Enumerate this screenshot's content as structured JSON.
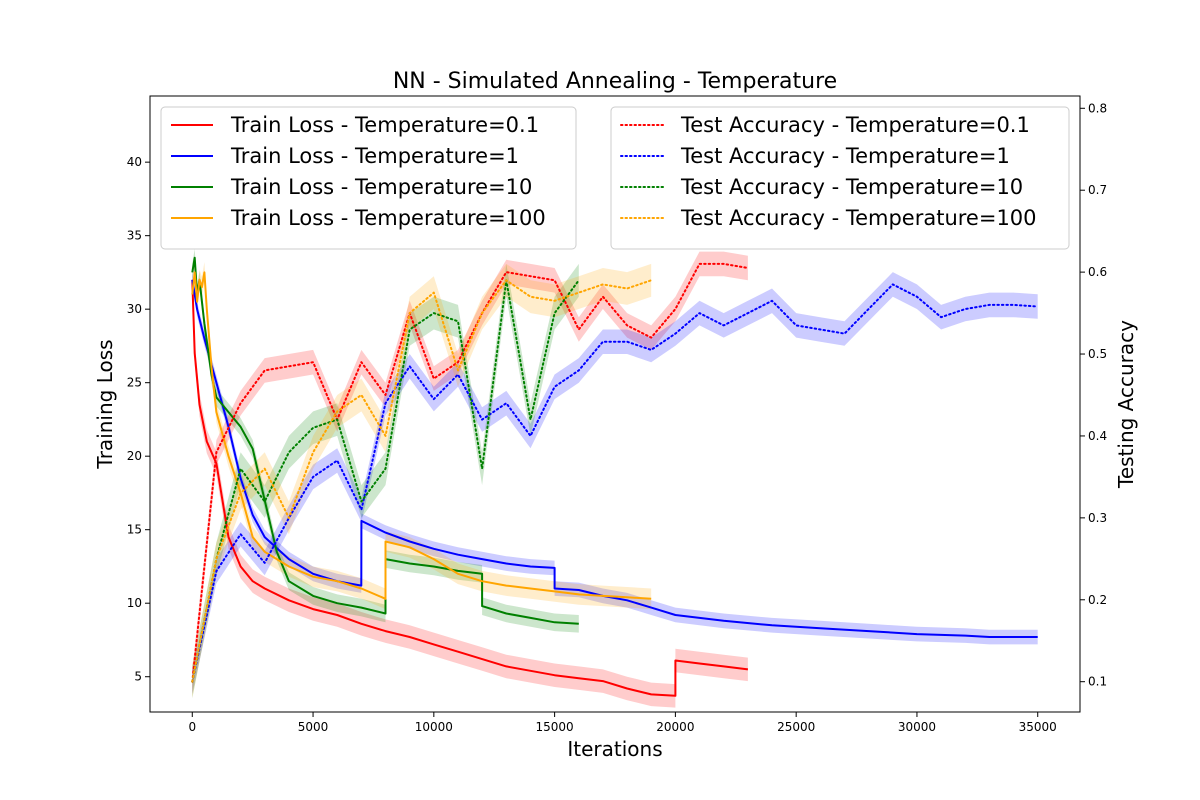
{
  "chart_data": {
    "type": "line",
    "title": "NN - Simulated Annealing - Temperature",
    "xlabel": "Iterations",
    "ylabel_left": "Training Loss",
    "ylabel_right": "Testing Accuracy",
    "xlim": [
      -1750,
      36750
    ],
    "ylim_left": [
      2.6,
      44.5
    ],
    "ylim_right": [
      0.063,
      0.815
    ],
    "xticks": [
      0,
      5000,
      10000,
      15000,
      20000,
      25000,
      30000,
      35000
    ],
    "yticks_left": [
      5,
      10,
      15,
      20,
      25,
      30,
      35,
      40
    ],
    "yticks_right": [
      0.1,
      0.2,
      0.3,
      0.4,
      0.5,
      0.6,
      0.7,
      0.8
    ],
    "grid": false,
    "legend_left_placement": "upper-left",
    "legend_right_placement": "upper-right",
    "series": [
      {
        "name": "Train Loss - Temperature=0.1",
        "axis": "left",
        "style": "solid",
        "color": "#ff0000",
        "x": [
          0,
          100,
          300,
          600,
          1000,
          1500,
          2000,
          2500,
          3000,
          4000,
          5000,
          6000,
          7000,
          8000,
          9000,
          10000,
          11000,
          12000,
          13000,
          14000,
          15000,
          16000,
          17000,
          18000,
          19000,
          20000,
          20001,
          21000,
          22000,
          23000
        ],
        "y": [
          32,
          27,
          23.5,
          21,
          19.5,
          14.5,
          12.5,
          11.5,
          11,
          10.2,
          9.6,
          9.2,
          8.6,
          8.1,
          7.7,
          7.2,
          6.7,
          6.2,
          5.7,
          5.4,
          5.1,
          4.9,
          4.7,
          4.2,
          3.8,
          3.7,
          6.1,
          5.9,
          5.7,
          5.5
        ],
        "spread": 0.8
      },
      {
        "name": "Train Loss - Temperature=1",
        "axis": "left",
        "style": "solid",
        "color": "#0000ff",
        "x": [
          0,
          200,
          500,
          1000,
          1500,
          2000,
          2500,
          3000,
          4000,
          5000,
          6000,
          6999,
          7000,
          8000,
          9000,
          10000,
          11000,
          12000,
          13000,
          14000,
          14999,
          15000,
          16000,
          17000,
          18000,
          19000,
          20000,
          22000,
          24000,
          26000,
          28000,
          30000,
          32000,
          33000,
          35000
        ],
        "y": [
          32,
          30,
          28,
          25,
          22,
          18.5,
          16,
          14.5,
          13,
          12,
          11.5,
          11.2,
          15.6,
          14.8,
          14.2,
          13.7,
          13.3,
          13,
          12.7,
          12.5,
          12.4,
          11,
          10.9,
          10.5,
          10.2,
          9.7,
          9.2,
          8.8,
          8.5,
          8.3,
          8.1,
          7.9,
          7.8,
          7.7,
          7.7
        ],
        "spread": 0.5
      },
      {
        "name": "Train Loss - Temperature=10",
        "axis": "left",
        "style": "solid",
        "color": "#008000",
        "x": [
          0,
          100,
          200,
          300,
          500,
          800,
          1000,
          1500,
          2000,
          2500,
          3000,
          3500,
          4000,
          5000,
          6000,
          7000,
          7999,
          8000,
          9000,
          10000,
          11000,
          11999,
          12000,
          13000,
          14000,
          15000,
          16000
        ],
        "y": [
          32.5,
          33.5,
          31,
          32,
          29,
          25.5,
          24,
          23,
          22,
          20.5,
          17,
          13.5,
          11.5,
          10.5,
          10,
          9.7,
          9.3,
          13,
          12.7,
          12.5,
          12.2,
          12,
          9.8,
          9.3,
          9,
          8.7,
          8.6
        ],
        "spread": 0.6
      },
      {
        "name": "Train Loss - Temperature=100",
        "axis": "left",
        "style": "solid",
        "color": "#ffa500",
        "x": [
          0,
          100,
          200,
          300,
          400,
          500,
          600,
          800,
          1000,
          1500,
          2000,
          2500,
          3000,
          4000,
          5000,
          6000,
          7000,
          7999,
          8000,
          9000,
          10000,
          11000,
          12000,
          13000,
          14000,
          15000,
          16000,
          17000,
          18000,
          19000
        ],
        "y": [
          31,
          32.5,
          30.5,
          32,
          31.5,
          32.5,
          30,
          26,
          23,
          20,
          17.5,
          14.5,
          13.5,
          12.5,
          11.8,
          11.5,
          11,
          10.3,
          14.2,
          13.8,
          13,
          12,
          11.5,
          11.2,
          11,
          10.8,
          10.6,
          10.5,
          10.4,
          10.3
        ],
        "spread": 0.7
      },
      {
        "name": "Test Accuracy - Temperature=0.1",
        "axis": "right",
        "style": "dotted",
        "color": "#ff0000",
        "x": [
          0,
          1000,
          2000,
          3000,
          4000,
          5000,
          6000,
          7000,
          8000,
          9000,
          10000,
          11000,
          12000,
          13000,
          14000,
          15000,
          16000,
          17000,
          18000,
          19000,
          20000,
          21000,
          22000,
          23000
        ],
        "y": [
          0.1,
          0.38,
          0.44,
          0.48,
          0.485,
          0.49,
          0.42,
          0.49,
          0.45,
          0.55,
          0.47,
          0.49,
          0.55,
          0.6,
          0.595,
          0.59,
          0.53,
          0.57,
          0.535,
          0.52,
          0.555,
          0.61,
          0.61,
          0.605
        ],
        "spread": 0.015
      },
      {
        "name": "Test Accuracy - Temperature=1",
        "axis": "right",
        "style": "dotted",
        "color": "#0000ff",
        "x": [
          0,
          1000,
          2000,
          3000,
          4000,
          5000,
          6000,
          7000,
          8000,
          9000,
          10000,
          11000,
          12000,
          13000,
          14000,
          15000,
          16000,
          17000,
          18000,
          19000,
          20000,
          21000,
          22000,
          23000,
          24000,
          25000,
          26000,
          27000,
          28000,
          29000,
          30000,
          31000,
          32000,
          33000,
          34000,
          35000
        ],
        "y": [
          0.1,
          0.235,
          0.28,
          0.245,
          0.3,
          0.35,
          0.37,
          0.31,
          0.44,
          0.485,
          0.445,
          0.475,
          0.42,
          0.44,
          0.4,
          0.46,
          0.48,
          0.515,
          0.515,
          0.505,
          0.525,
          0.55,
          0.535,
          0.55,
          0.565,
          0.535,
          0.53,
          0.525,
          0.555,
          0.585,
          0.57,
          0.545,
          0.555,
          0.56,
          0.56,
          0.558
        ],
        "spread": 0.015
      },
      {
        "name": "Test Accuracy - Temperature=10",
        "axis": "right",
        "style": "dotted",
        "color": "#008000",
        "x": [
          0,
          1000,
          2000,
          3000,
          4000,
          5000,
          6000,
          7000,
          8000,
          9000,
          10000,
          11000,
          12000,
          13000,
          14000,
          15000,
          16000
        ],
        "y": [
          0.1,
          0.25,
          0.36,
          0.32,
          0.38,
          0.41,
          0.42,
          0.32,
          0.36,
          0.53,
          0.55,
          0.54,
          0.36,
          0.59,
          0.42,
          0.55,
          0.59
        ],
        "spread": 0.02
      },
      {
        "name": "Test Accuracy - Temperature=100",
        "axis": "right",
        "style": "dotted",
        "color": "#ffa500",
        "x": [
          0,
          1000,
          2000,
          3000,
          4000,
          5000,
          6000,
          7000,
          8000,
          9000,
          10000,
          11000,
          12000,
          13000,
          14000,
          15000,
          16000,
          17000,
          18000,
          19000
        ],
        "y": [
          0.1,
          0.25,
          0.33,
          0.36,
          0.3,
          0.38,
          0.43,
          0.45,
          0.4,
          0.55,
          0.575,
          0.48,
          0.55,
          0.59,
          0.57,
          0.565,
          0.575,
          0.585,
          0.58,
          0.59
        ],
        "spread": 0.02
      }
    ]
  }
}
